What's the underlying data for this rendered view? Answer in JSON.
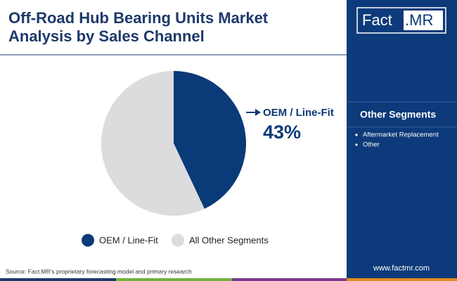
{
  "chart_data": {
    "type": "pie",
    "title": [
      "Off-Road Hub Bearing Units Market",
      "Analysis by Sales Channel"
    ],
    "categories": [
      "OEM / Line-Fit",
      "All Other Segments"
    ],
    "values": [
      43,
      57
    ],
    "value_labels": [
      "43%",
      null
    ],
    "colors": [
      "#0b3a78",
      "#dcdcdf"
    ]
  },
  "logo": {
    "left": "Fact",
    "right": ".MR"
  },
  "sidebar": {
    "title": "Other Segments",
    "items": [
      "Aftermarket Replacement",
      "Other"
    ]
  },
  "source": "Source: Fact.MR's proprietary forecasting model and primary research",
  "website": "www.factmr.com"
}
